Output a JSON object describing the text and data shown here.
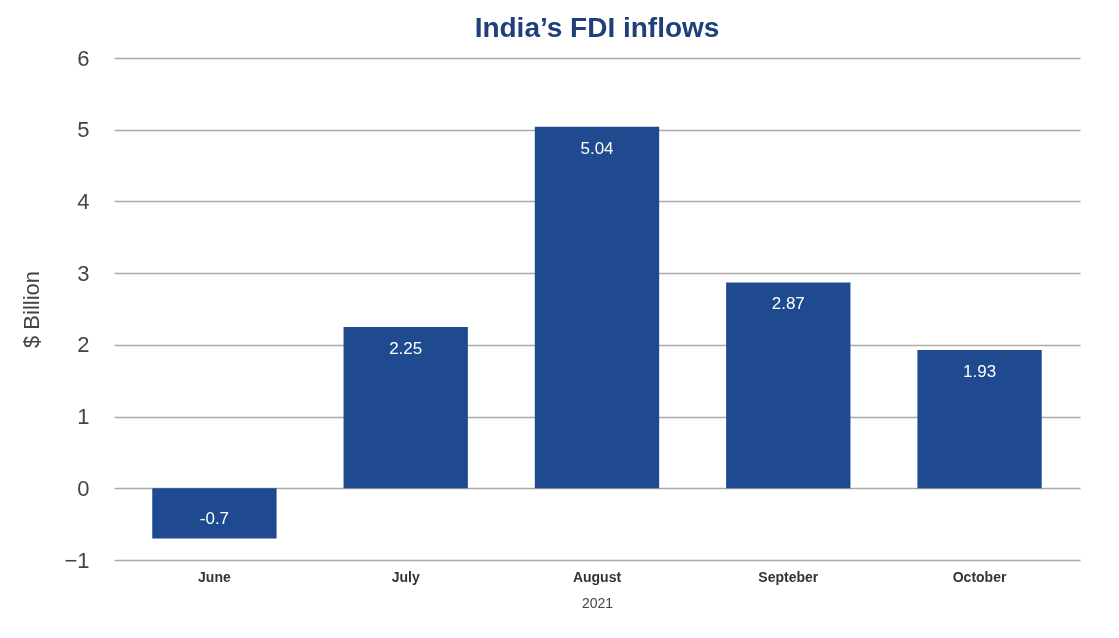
{
  "chart_data": {
    "type": "bar",
    "title": "India’s FDI inflows",
    "xlabel": "2021",
    "ylabel": "$ Billion",
    "categories": [
      "June",
      "July",
      "August",
      "Septeber",
      "October"
    ],
    "values": [
      -0.7,
      2.25,
      5.04,
      2.87,
      1.93
    ],
    "color": "#1f4a8f",
    "ylim": [
      -1,
      6
    ],
    "yticks": [
      -1,
      0,
      1,
      2,
      3,
      4,
      5,
      6
    ],
    "grid": "y",
    "data_labels": true
  }
}
